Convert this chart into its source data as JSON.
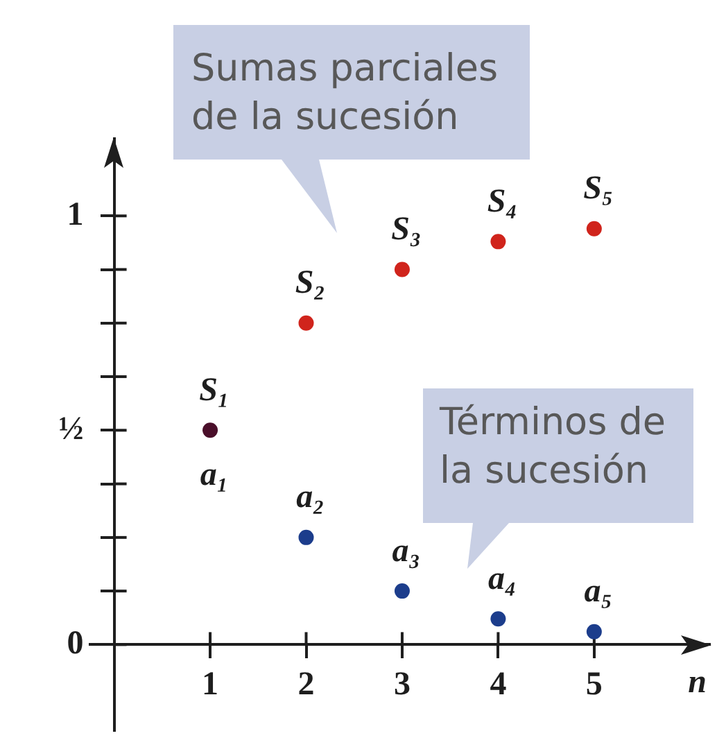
{
  "chart_data": {
    "type": "scatter",
    "x": [
      1,
      2,
      3,
      4,
      5
    ],
    "series": [
      {
        "colors": [
          "#4a0f2a",
          "#d0241c",
          "#d0241c",
          "#d0241c",
          "#d0241c"
        ],
        "values": [
          0.5,
          0.75,
          0.875,
          0.94,
          0.97
        ]
      },
      {
        "color": "#1c3d8c",
        "values": [
          null,
          0.25,
          0.125,
          0.06,
          0.03
        ]
      }
    ],
    "xlabel": "n",
    "xlim": [
      -0.25,
      6.2
    ],
    "ylim": [
      -0.2,
      1.18
    ],
    "xticks": [
      1,
      2,
      3,
      4,
      5
    ],
    "yticks": [
      0,
      {
        "value": 0.125,
        "label": null
      },
      {
        "value": 0.25,
        "label": null
      },
      {
        "value": 0.375,
        "label": null
      },
      {
        "value": 0.5,
        "label": "½"
      },
      {
        "value": 0.625,
        "label": null
      },
      {
        "value": 0.75,
        "label": null
      },
      {
        "value": 0.875,
        "label": null
      },
      1
    ],
    "marker": "circle",
    "grid": false,
    "legend": false,
    "annotations": [
      "Sumas parciales\nde la sucesión",
      "Términos de\nla sucesión",
      {
        "text": "S₁",
        "x": 1,
        "y": 0.5
      },
      {
        "text": "S₂",
        "x": 2,
        "y": 0.75
      },
      {
        "text": "S₃",
        "x": 3,
        "y": 0.875
      },
      {
        "text": "S₄",
        "x": 4,
        "y": 0.94
      },
      {
        "text": "S₅",
        "x": 5,
        "y": 0.97
      },
      {
        "text": "a₁",
        "x": 1,
        "y": 0.5
      },
      {
        "text": "a₂",
        "x": 2,
        "y": 0.25
      },
      {
        "text": "a₃",
        "x": 3,
        "y": 0.125
      },
      {
        "text": "a₄",
        "x": 4,
        "y": 0.06
      },
      {
        "text": "a₅",
        "x": 5,
        "y": 0.03
      }
    ]
  }
}
